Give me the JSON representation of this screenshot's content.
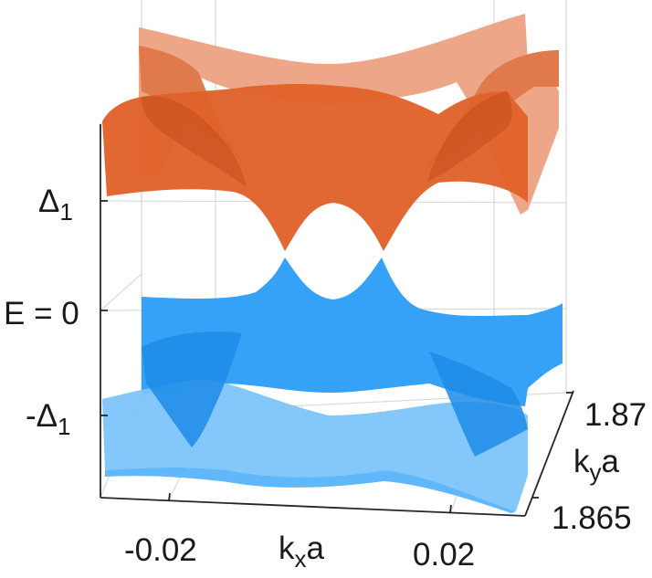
{
  "figure": {
    "z_ticks": [
      {
        "text": "Δ",
        "sub": "1"
      },
      {
        "text": "E = 0",
        "sub": ""
      },
      {
        "text": "-Δ",
        "sub": "1"
      }
    ],
    "x_ticks": [
      "-0.02",
      "0.02"
    ],
    "x_label": {
      "main": "k",
      "sub": "x",
      "tail": "a"
    },
    "y_ticks": [
      "1.87",
      "1.865"
    ],
    "y_label": {
      "main": "k",
      "sub": "y",
      "tail": "a"
    },
    "colors": {
      "upper_band": "#e0622a",
      "upper_band_light": "#eca07e",
      "lower_band": "#2a9cf7",
      "lower_band_light": "#7cc4fb",
      "axis": "#262626",
      "grid": "#d8d8d8"
    }
  },
  "chart_data": {
    "type": "surface3d",
    "surfaces": [
      "upper band",
      "lower band"
    ],
    "x_axis": {
      "ticks": [
        -0.02,
        0.02
      ]
    },
    "y_axis": {
      "ticks": [
        1.865,
        1.87
      ]
    },
    "z_axis": {
      "ticks": [
        "-Δ_1",
        "E = 0",
        "Δ_1"
      ]
    },
    "grid": true
  }
}
